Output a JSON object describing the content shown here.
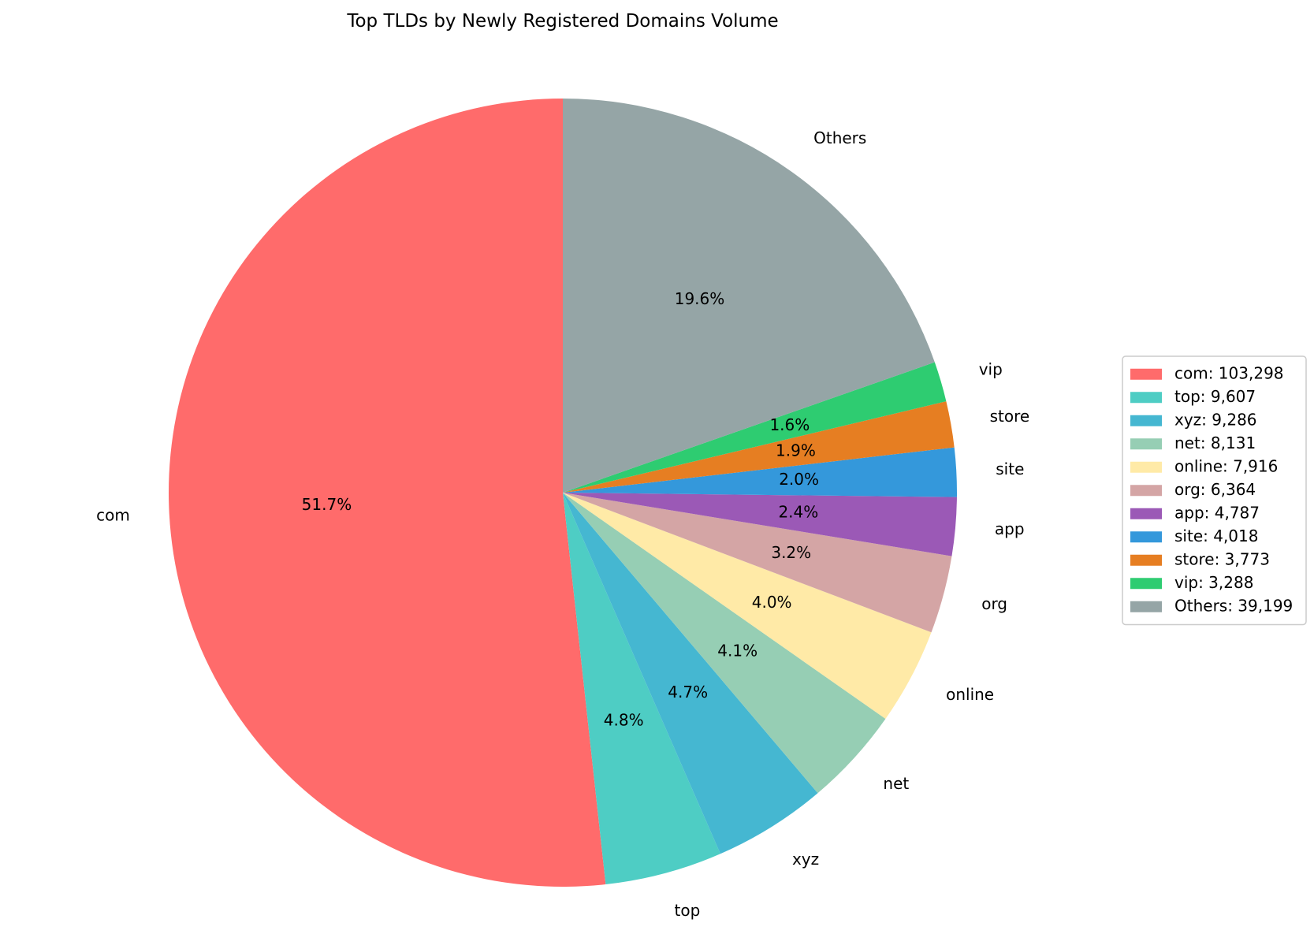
{
  "chart_data": {
    "type": "pie",
    "title": "Top TLDs by Newly Registered Domains Volume",
    "start_angle_deg": 90,
    "direction": "counterclockwise",
    "legend_position": "center-right",
    "slices": [
      {
        "label": "com",
        "value": 103298,
        "pct_label": "51.7%",
        "legend_label": "com: 103,298",
        "color": "#ff6b6b"
      },
      {
        "label": "top",
        "value": 9607,
        "pct_label": "4.8%",
        "legend_label": "top: 9,607",
        "color": "#4ecdc4"
      },
      {
        "label": "xyz",
        "value": 9286,
        "pct_label": "4.7%",
        "legend_label": "xyz: 9,286",
        "color": "#45b7d1"
      },
      {
        "label": "net",
        "value": 8131,
        "pct_label": "4.1%",
        "legend_label": "net: 8,131",
        "color": "#96ceb4"
      },
      {
        "label": "online",
        "value": 7916,
        "pct_label": "4.0%",
        "legend_label": "online: 7,916",
        "color": "#ffeaa7"
      },
      {
        "label": "org",
        "value": 6364,
        "pct_label": "3.2%",
        "legend_label": "org: 6,364",
        "color": "#d4a5a5"
      },
      {
        "label": "app",
        "value": 4787,
        "pct_label": "2.4%",
        "legend_label": "app: 4,787",
        "color": "#9b59b6"
      },
      {
        "label": "site",
        "value": 4018,
        "pct_label": "2.0%",
        "legend_label": "site: 4,018",
        "color": "#3498db"
      },
      {
        "label": "store",
        "value": 3773,
        "pct_label": "1.9%",
        "legend_label": "store: 3,773",
        "color": "#e67e22"
      },
      {
        "label": "vip",
        "value": 3288,
        "pct_label": "1.6%",
        "legend_label": "vip: 3,288",
        "color": "#2ecc71"
      },
      {
        "label": "Others",
        "value": 39199,
        "pct_label": "19.6%",
        "legend_label": "Others: 39,199",
        "color": "#95a5a6"
      }
    ]
  }
}
